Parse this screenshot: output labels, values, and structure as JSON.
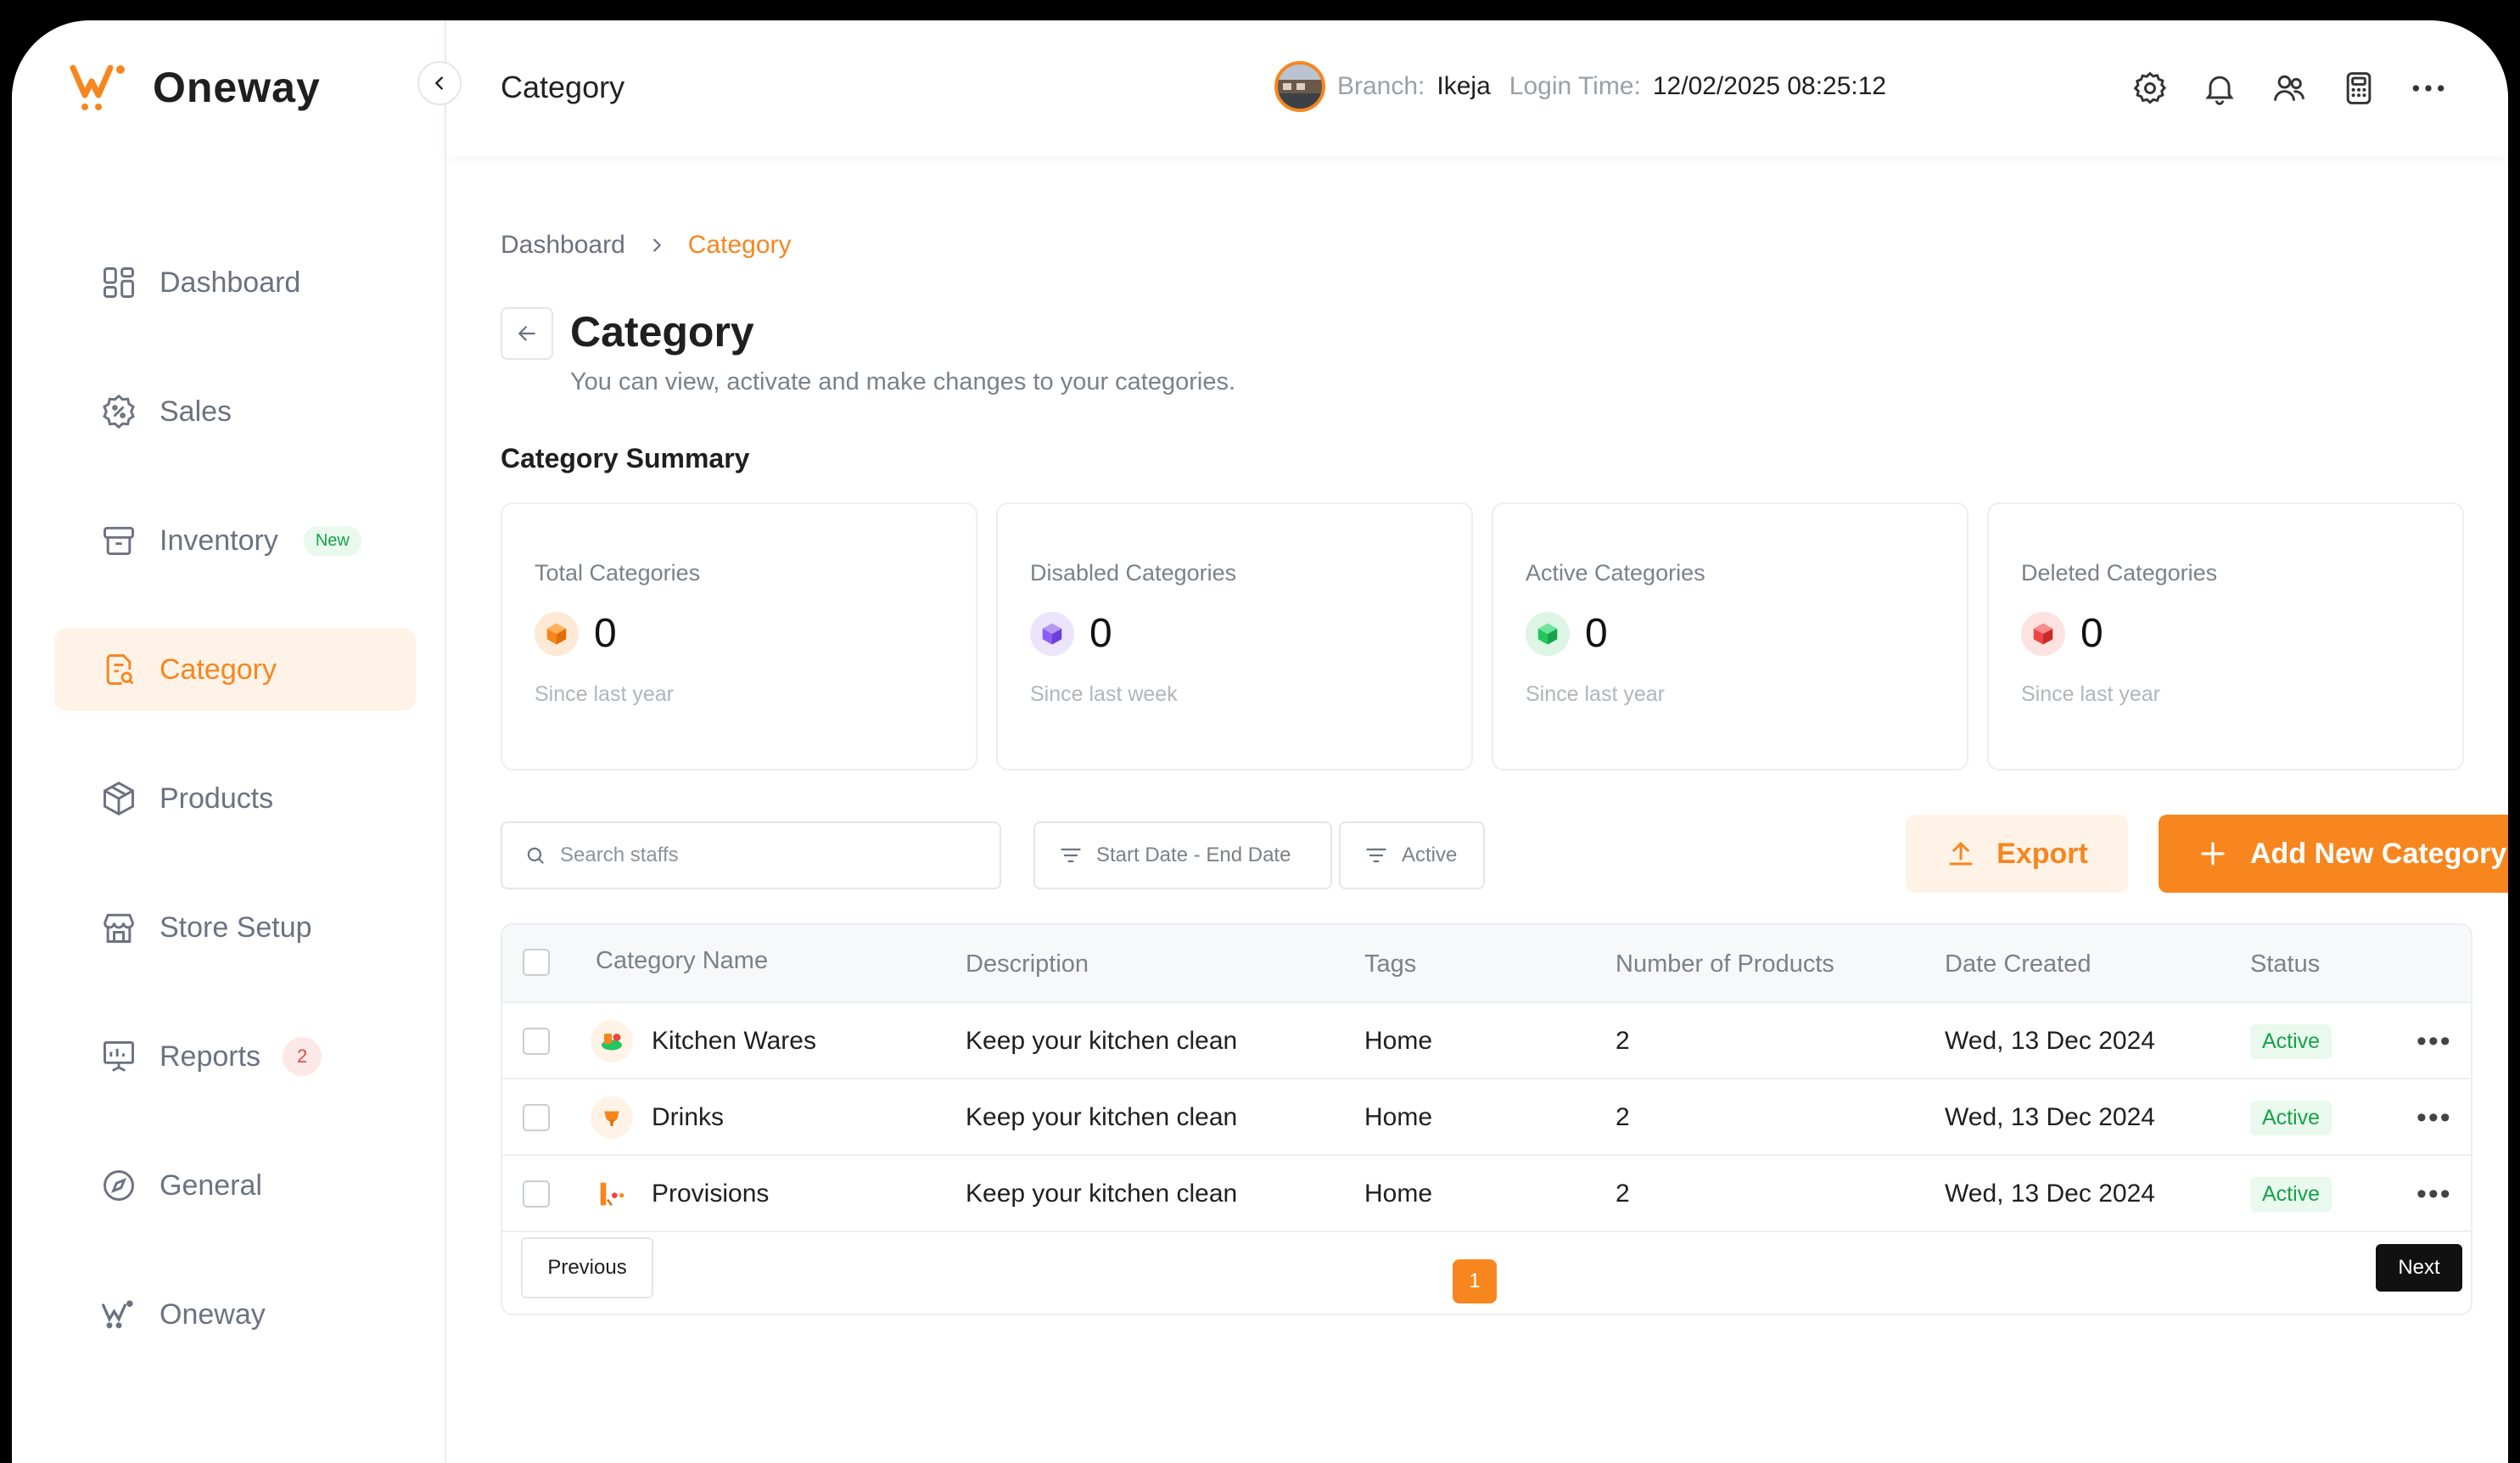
{
  "app": {
    "name": "Oneway"
  },
  "sidebar": {
    "items": [
      {
        "label": "Dashboard",
        "icon": "grid-icon"
      },
      {
        "label": "Sales",
        "icon": "percent-badge-icon"
      },
      {
        "label": "Inventory",
        "icon": "box-icon",
        "badge": "New"
      },
      {
        "label": "Category",
        "icon": "category-search-icon",
        "active": true
      },
      {
        "label": "Products",
        "icon": "cube-icon"
      },
      {
        "label": "Store Setup",
        "icon": "store-icon"
      },
      {
        "label": "Reports",
        "icon": "report-board-icon",
        "badge": "2"
      },
      {
        "label": "General",
        "icon": "compass-icon"
      },
      {
        "label": "Oneway",
        "icon": "oneway-logo-icon"
      }
    ]
  },
  "header": {
    "title": "Category",
    "branch_label": "Branch:",
    "branch_value": "Ikeja",
    "login_label": "Login Time:",
    "login_value": "12/02/2025 08:25:12",
    "icons": [
      "settings-icon",
      "bell-icon",
      "users-icon",
      "calculator-icon",
      "more-icon"
    ]
  },
  "breadcrumb": {
    "home": "Dashboard",
    "current": "Category"
  },
  "page": {
    "title": "Category",
    "subtitle": "You can view, activate and make changes to your categories.",
    "summary_title": "Category Summary"
  },
  "cards": [
    {
      "label": "Total Categories",
      "value": "0",
      "foot": "Since last year",
      "color": "#f7861e"
    },
    {
      "label": "Disabled Categories",
      "value": "0",
      "foot": "Since last week",
      "color": "#8b5cf6"
    },
    {
      "label": "Active Categories",
      "value": "0",
      "foot": "Since last year",
      "color": "#22c55e"
    },
    {
      "label": "Deleted Categories",
      "value": "0",
      "foot": "Since last year",
      "color": "#ef4444"
    }
  ],
  "toolbar": {
    "search_placeholder": "Search staffs",
    "date_filter": "Start Date - End Date",
    "status_filter": "Active",
    "export_label": "Export",
    "add_label": "Add New Category"
  },
  "table": {
    "columns": [
      "Category Name",
      "Description",
      "Tags",
      "Number of Products",
      "Date Created",
      "Status"
    ],
    "rows": [
      {
        "name": "Kitchen Wares",
        "description": "Keep your kitchen clean",
        "tags": "Home",
        "products": "2",
        "date": "Wed, 13 Dec 2024",
        "status": "Active"
      },
      {
        "name": "Drinks",
        "description": "Keep your kitchen clean",
        "tags": "Home",
        "products": "2",
        "date": "Wed, 13 Dec 2024",
        "status": "Active"
      },
      {
        "name": "Provisions",
        "description": "Keep your kitchen clean",
        "tags": "Home",
        "products": "2",
        "date": "Wed, 13 Dec 2024",
        "status": "Active"
      }
    ],
    "pagination": {
      "prev": "Previous",
      "page": "1",
      "next": "Next"
    }
  },
  "colors": {
    "accent": "#f7861e",
    "active_bg": "#fff3e8",
    "status_green": "#16a34a"
  }
}
